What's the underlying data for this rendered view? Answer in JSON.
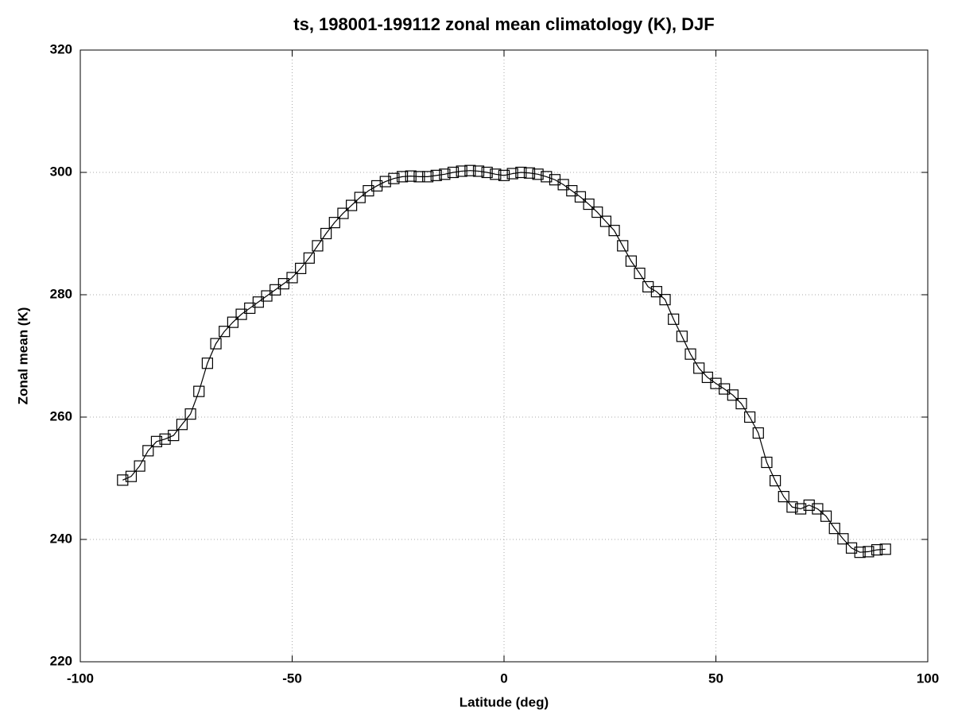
{
  "chart_data": {
    "type": "line",
    "title": "ts, 198001-199112 zonal mean climatology (K), DJF",
    "x_label": "Latitude (deg)",
    "y_label": "Zonal mean (K)",
    "x": [
      -90,
      -88,
      -86,
      -84,
      -82,
      -80,
      -78,
      -76,
      -74,
      -72,
      -70,
      -68,
      -66,
      -64,
      -62,
      -60,
      -58,
      -56,
      -54,
      -52,
      -50,
      -48,
      -46,
      -44,
      -42,
      -40,
      -38,
      -36,
      -34,
      -32,
      -30,
      -28,
      -26,
      -24,
      -22,
      -20,
      -18,
      -16,
      -14,
      -12,
      -10,
      -8,
      -6,
      -4,
      -2,
      0,
      2,
      4,
      6,
      8,
      10,
      12,
      14,
      16,
      18,
      20,
      22,
      24,
      26,
      28,
      30,
      32,
      34,
      36,
      38,
      40,
      42,
      44,
      46,
      48,
      50,
      52,
      54,
      56,
      58,
      60,
      62,
      64,
      66,
      68,
      70,
      72,
      74,
      76,
      78,
      80,
      82,
      84,
      86,
      88,
      90
    ],
    "series": [
      {
        "color": "#000000",
        "values": [
          249.7,
          250.3,
          252,
          254.5,
          256,
          256.4,
          257,
          258.8,
          260.5,
          264.2,
          268.8,
          272,
          274,
          275.5,
          276.8,
          277.8,
          278.8,
          279.8,
          280.8,
          281.8,
          282.8,
          284.3,
          286,
          288,
          290,
          291.8,
          293.3,
          294.6,
          295.9,
          297,
          297.8,
          298.5,
          299,
          299.3,
          299.4,
          299.3,
          299.3,
          299.5,
          299.7,
          300,
          300.2,
          300.3,
          300.2,
          300,
          299.7,
          299.5,
          299.8,
          300,
          299.9,
          299.7,
          299.3,
          298.8,
          298,
          297,
          296,
          294.8,
          293.5,
          292,
          290.5,
          288,
          285.5,
          283.5,
          281.3,
          280.5,
          279.2,
          276,
          273.2,
          270.3,
          268,
          266.5,
          265.5,
          264.6,
          263.6,
          262.2,
          260,
          257.4,
          252.6,
          249.6,
          247,
          245.3,
          245,
          245.6,
          245,
          243.8,
          241.8,
          240.1,
          238.6,
          237.9,
          238,
          238.3,
          238.4
        ]
      }
    ],
    "xlim": [
      -100,
      100
    ],
    "xticks": [
      -100,
      -50,
      0,
      50,
      100
    ],
    "ylim": [
      220,
      320
    ],
    "yticks": [
      220,
      240,
      260,
      280,
      300,
      320
    ],
    "grid": true
  }
}
